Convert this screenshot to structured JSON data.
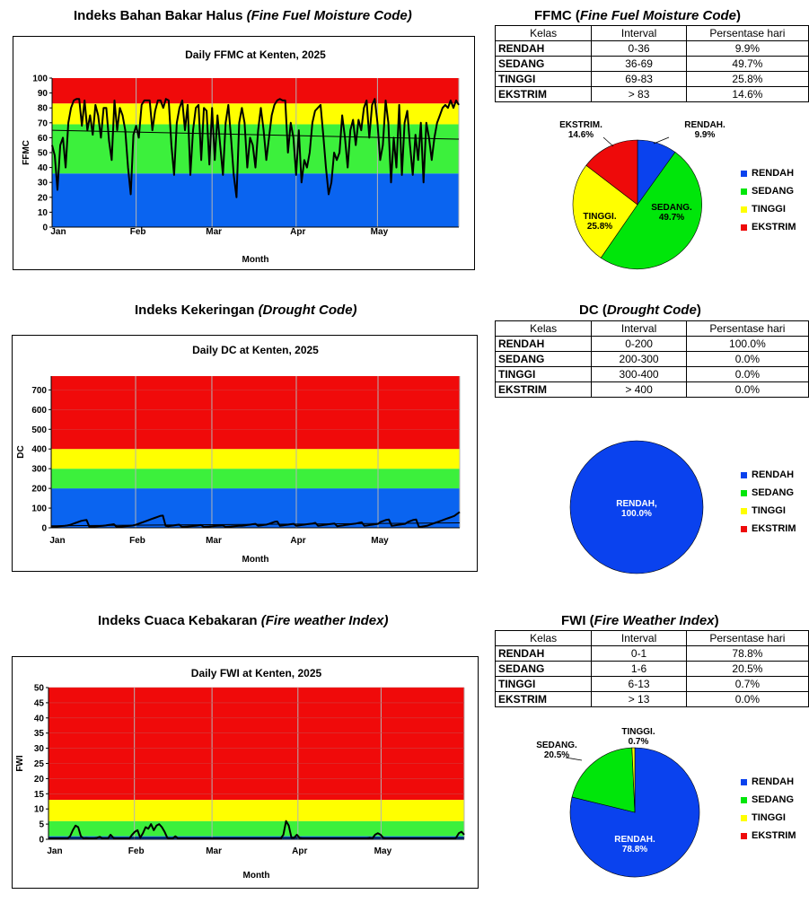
{
  "colors": {
    "rendah": "#0a42ee",
    "sedang": "#00e60a",
    "tinggi": "#ffff00",
    "ekstrim": "#ee0a0a",
    "band_blue": "#0a64f0",
    "band_green": "#3cf03c",
    "band_yellow": "#ffff00",
    "band_red": "#f00a0a"
  },
  "sections": [
    {
      "title_main": "Indeks Bahan Bakar Halus ",
      "title_italic": "(Fine Fuel Moisture Code)",
      "table_title_main": "FFMC (",
      "table_title_italic": "Fine Fuel Moisture Code",
      "table_title_end": ")",
      "table_head": [
        "Kelas",
        "Interval",
        "Persentase hari"
      ],
      "table_rows": [
        {
          "kelas": "RENDAH",
          "interval": "0-36",
          "persen": "9.9%"
        },
        {
          "kelas": "SEDANG",
          "interval": "36-69",
          "persen": "49.7%"
        },
        {
          "kelas": "TINGGI",
          "interval": "69-83",
          "persen": "25.8%"
        },
        {
          "kelas": "EKSTRIM",
          "interval": "> 83",
          "persen": "14.6%"
        }
      ],
      "pie_labels": [
        {
          "name": "RENDAH.",
          "value": "9.9%"
        },
        {
          "name": "SEDANG.",
          "value": "49.7%"
        },
        {
          "name": "TINGGI.",
          "value": "25.8%"
        },
        {
          "name": "EKSTRIM.",
          "value": "14.6%"
        }
      ],
      "legend": [
        "RENDAH",
        "SEDANG",
        "TINGGI",
        "EKSTRIM"
      ]
    },
    {
      "title_main": "Indeks Kekeringan ",
      "title_italic": "(Drought Code)",
      "table_title_main": "DC (",
      "table_title_italic": "Drought Code",
      "table_title_end": ")",
      "table_head": [
        "Kelas",
        "Interval",
        "Persentase hari"
      ],
      "table_rows": [
        {
          "kelas": "RENDAH",
          "interval": "0-200",
          "persen": "100.0%"
        },
        {
          "kelas": "SEDANG",
          "interval": "200-300",
          "persen": "0.0%"
        },
        {
          "kelas": "TINGGI",
          "interval": "300-400",
          "persen": "0.0%"
        },
        {
          "kelas": "EKSTRIM",
          "interval": "> 400",
          "persen": "0.0%"
        }
      ],
      "pie_labels": [
        {
          "name": "RENDAH,",
          "value": "100.0%"
        }
      ],
      "legend": [
        "RENDAH",
        "SEDANG",
        "TINGGI",
        "EKSTRIM"
      ]
    },
    {
      "title_main": "Indeks Cuaca Kebakaran ",
      "title_italic": "(Fire weather Index)",
      "table_title_main": "FWI (",
      "table_title_italic": "Fire Weather Index",
      "table_title_end": ")",
      "table_head": [
        "Kelas",
        "Interval",
        "Persentase hari"
      ],
      "table_rows": [
        {
          "kelas": "RENDAH",
          "interval": "0-1",
          "persen": "78.8%"
        },
        {
          "kelas": "SEDANG",
          "interval": "1-6",
          "persen": "20.5%"
        },
        {
          "kelas": "TINGGI",
          "interval": "6-13",
          "persen": "0.7%"
        },
        {
          "kelas": "EKSTRIM",
          "interval": "> 13",
          "persen": "0.0%"
        }
      ],
      "pie_labels": [
        {
          "name": "RENDAH.",
          "value": "78.8%"
        },
        {
          "name": "SEDANG.",
          "value": "20.5%"
        },
        {
          "name": "TINGGI.",
          "value": "0.7%"
        }
      ],
      "legend": [
        "RENDAH",
        "SEDANG",
        "TINGGI",
        "EKSTRIM"
      ]
    }
  ],
  "chart_data": [
    {
      "type": "line",
      "title": "Daily FFMC at Kenten, 2025",
      "xlabel": "Month",
      "ylabel": "FFMC",
      "x_ticks": [
        "Jan",
        "Feb",
        "Mar",
        "Apr",
        "May"
      ],
      "y_ticks": [
        0,
        10,
        20,
        30,
        40,
        50,
        60,
        70,
        80,
        90,
        100
      ],
      "ylim": [
        0,
        100
      ],
      "day_range": [
        1,
        151
      ],
      "bands": [
        {
          "from": 0,
          "to": 36,
          "class": "RENDAH"
        },
        {
          "from": 36,
          "to": 69,
          "class": "SEDANG"
        },
        {
          "from": 69,
          "to": 83,
          "class": "TINGGI"
        },
        {
          "from": 83,
          "to": 100,
          "class": "EKSTRIM"
        }
      ],
      "series": [
        {
          "values": [
            55,
            48,
            25,
            55,
            60,
            40,
            70,
            80,
            85,
            86,
            86,
            68,
            85,
            65,
            75,
            62,
            82,
            75,
            60,
            80,
            80,
            58,
            45,
            85,
            65,
            80,
            75,
            65,
            40,
            22,
            62,
            68,
            60,
            82,
            85,
            85,
            85,
            65,
            78,
            85,
            85,
            80,
            86,
            85,
            55,
            35,
            70,
            80,
            85,
            65,
            82,
            35,
            65,
            80,
            82,
            45,
            80,
            78,
            42,
            80,
            45,
            75,
            55,
            35,
            70,
            82,
            60,
            35,
            20,
            70,
            80,
            70,
            40,
            60,
            55,
            40,
            65,
            80,
            65,
            45,
            60,
            75,
            82,
            85,
            86,
            85,
            85,
            50,
            70,
            60,
            35,
            65,
            30,
            45,
            40,
            50,
            70,
            78,
            80,
            82,
            62,
            40,
            22,
            30,
            50,
            45,
            50,
            75,
            60,
            40,
            65,
            72,
            55,
            72,
            65,
            80,
            85,
            60,
            82,
            86,
            70,
            45,
            55,
            85,
            70,
            30,
            60,
            40,
            82,
            35,
            70,
            78,
            55,
            35,
            62,
            45,
            70,
            30,
            70,
            60,
            45,
            60,
            70,
            75,
            80,
            82,
            80,
            85,
            80,
            85,
            82
          ]
        }
      ],
      "trend": [
        65,
        59
      ]
    },
    {
      "type": "line",
      "title": "Daily DC at Kenten, 2025",
      "xlabel": "Month",
      "ylabel": "DC",
      "x_ticks": [
        "Jan",
        "Feb",
        "Mar",
        "Apr",
        "May"
      ],
      "y_ticks": [
        0,
        100,
        200,
        300,
        400,
        500,
        600,
        700
      ],
      "ylim": [
        0,
        770
      ],
      "day_range": [
        1,
        151
      ],
      "bands": [
        {
          "from": 0,
          "to": 200,
          "class": "RENDAH"
        },
        {
          "from": 200,
          "to": 300,
          "class": "SEDANG"
        },
        {
          "from": 300,
          "to": 400,
          "class": "TINGGI"
        },
        {
          "from": 400,
          "to": 770,
          "class": "EKSTRIM"
        }
      ],
      "series": [
        {
          "values": [
            5,
            6,
            7,
            8,
            9,
            10,
            12,
            15,
            20,
            25,
            30,
            35,
            38,
            40,
            5,
            6,
            7,
            8,
            9,
            10,
            12,
            14,
            16,
            18,
            5,
            6,
            7,
            8,
            9,
            10,
            12,
            15,
            20,
            25,
            30,
            35,
            40,
            45,
            50,
            55,
            60,
            62,
            10,
            8,
            10,
            12,
            14,
            16,
            5,
            6,
            7,
            8,
            9,
            10,
            12,
            14,
            5,
            6,
            7,
            8,
            9,
            10,
            11,
            12,
            5,
            6,
            7,
            8,
            9,
            10,
            10,
            12,
            14,
            16,
            18,
            20,
            10,
            12,
            14,
            16,
            20,
            25,
            30,
            32,
            10,
            12,
            14,
            16,
            18,
            20,
            10,
            12,
            14,
            16,
            18,
            20,
            22,
            25,
            10,
            12,
            14,
            16,
            18,
            20,
            22,
            8,
            10,
            12,
            14,
            16,
            18,
            20,
            22,
            25,
            28,
            10,
            12,
            14,
            16,
            18,
            20,
            30,
            35,
            40,
            42,
            10,
            12,
            14,
            16,
            18,
            20,
            30,
            35,
            40,
            42,
            5,
            6,
            8,
            10,
            15,
            20,
            25,
            30,
            35,
            40,
            45,
            50,
            55,
            60,
            70,
            80
          ]
        }
      ],
      "trend": [
        10,
        25
      ]
    },
    {
      "type": "line",
      "title": "Daily FWI at Kenten, 2025",
      "xlabel": "Month",
      "ylabel": "FWI",
      "x_ticks": [
        "Jan",
        "Feb",
        "Mar",
        "Apr",
        "May"
      ],
      "y_ticks": [
        0,
        5,
        10,
        15,
        20,
        25,
        30,
        35,
        40,
        45,
        50
      ],
      "ylim": [
        0,
        50
      ],
      "day_range": [
        1,
        151
      ],
      "bands": [
        {
          "from": 0,
          "to": 1,
          "class": "RENDAH"
        },
        {
          "from": 1,
          "to": 6,
          "class": "SEDANG"
        },
        {
          "from": 6,
          "to": 13,
          "class": "TINGGI"
        },
        {
          "from": 13,
          "to": 50,
          "class": "EKSTRIM"
        }
      ],
      "series": [
        {
          "values": [
            0.2,
            0.2,
            0.3,
            0.2,
            0.2,
            0.3,
            0.3,
            0.2,
            1,
            3,
            4.5,
            4,
            1,
            0.3,
            0.4,
            0.3,
            0.2,
            0.3,
            0.5,
            0.8,
            0.3,
            0.2,
            0.2,
            1.5,
            0.5,
            0.2,
            0.2,
            0.2,
            0.2,
            0.3,
            0.3,
            1.5,
            2.5,
            3,
            0.5,
            2,
            4,
            3.5,
            5,
            3,
            4.5,
            5,
            4,
            2.5,
            0.5,
            0.3,
            0.3,
            1,
            0.3,
            0.2,
            0.2,
            0.2,
            0.2,
            0.3,
            0.3,
            0.2,
            0.2,
            0.2,
            0.2,
            0.3,
            0.3,
            0.2,
            0.2,
            0.2,
            0.2,
            0.2,
            0.2,
            0.3,
            0.2,
            0.2,
            0.2,
            0.2,
            0.3,
            0.2,
            0.2,
            0.2,
            0.2,
            0.2,
            0.3,
            0.2,
            0.2,
            0.2,
            0.2,
            0.3,
            0.3,
            0.2,
            0.2,
            1.5,
            6,
            4.5,
            0.5,
            0.5,
            1.5,
            0.5,
            0.3,
            0.2,
            0.3,
            0.2,
            0.2,
            0.2,
            0.2,
            0.2,
            0.2,
            0.2,
            0.2,
            0.2,
            0.3,
            0.2,
            0.2,
            0.2,
            0.2,
            0.2,
            0.3,
            0.2,
            0.2,
            0.2,
            0.2,
            0.2,
            0.3,
            0.5,
            0.3,
            1.5,
            2,
            1.5,
            0.5,
            0.3,
            0.2,
            0.2,
            0.2,
            0.2,
            0.3,
            0.2,
            0.2,
            0.2,
            0.2,
            0.2,
            0.2,
            0.2,
            0.3,
            0.2,
            0.2,
            0.2,
            0.2,
            0.2,
            0.3,
            0.2,
            0.2,
            0.2,
            0.2,
            0.2,
            0.2,
            0.5,
            2,
            2.5,
            1.5
          ]
        }
      ],
      "trend": [
        0.5,
        0.5
      ]
    },
    {
      "type": "pie",
      "categories": [
        "RENDAH",
        "SEDANG",
        "TINGGI",
        "EKSTRIM"
      ],
      "values": [
        9.9,
        49.7,
        25.8,
        14.6
      ]
    },
    {
      "type": "pie",
      "categories": [
        "RENDAH",
        "SEDANG",
        "TINGGI",
        "EKSTRIM"
      ],
      "values": [
        100,
        0,
        0,
        0
      ]
    },
    {
      "type": "pie",
      "categories": [
        "RENDAH",
        "SEDANG",
        "TINGGI",
        "EKSTRIM"
      ],
      "values": [
        78.8,
        20.5,
        0.7,
        0
      ]
    }
  ]
}
